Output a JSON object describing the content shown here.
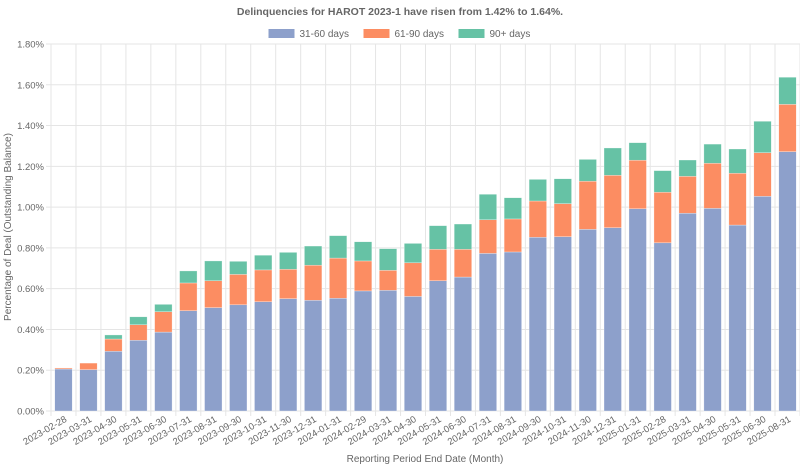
{
  "chart_data": {
    "type": "bar",
    "stacked": true,
    "title": "Delinquencies for HAROT 2023-1 have risen from 1.42% to 1.64%.",
    "xlabel": "Reporting Period End Date (Month)",
    "ylabel": "Percentage of Deal (Outstanding Balance)",
    "ylim": [
      0,
      1.8
    ],
    "y_ticks": [
      "0.00%",
      "0.20%",
      "0.40%",
      "0.60%",
      "0.80%",
      "1.00%",
      "1.20%",
      "1.40%",
      "1.60%",
      "1.80%"
    ],
    "y_tick_values": [
      0,
      0.2,
      0.4,
      0.6,
      0.8,
      1.0,
      1.2,
      1.4,
      1.6,
      1.8
    ],
    "grid": true,
    "legend_position": "top-center",
    "categories": [
      "2023-02-28",
      "2023-03-31",
      "2023-04-30",
      "2023-05-31",
      "2023-06-30",
      "2023-07-31",
      "2023-08-31",
      "2023-09-30",
      "2023-10-31",
      "2023-11-30",
      "2023-12-31",
      "2024-01-31",
      "2024-02-29",
      "2024-03-31",
      "2024-04-30",
      "2024-05-31",
      "2024-06-30",
      "2024-07-31",
      "2024-08-31",
      "2024-09-30",
      "2024-10-31",
      "2024-11-30",
      "2024-12-31",
      "2025-01-31",
      "2025-02-28",
      "2025-03-31",
      "2025-04-30",
      "2025-05-31",
      "2025-06-30",
      "2025-08-31"
    ],
    "series": [
      {
        "name": "31-60 days",
        "color": "#8da0cb",
        "values": [
          0.206,
          0.203,
          0.293,
          0.347,
          0.387,
          0.492,
          0.507,
          0.521,
          0.536,
          0.551,
          0.543,
          0.553,
          0.589,
          0.592,
          0.562,
          0.639,
          0.657,
          0.773,
          0.78,
          0.852,
          0.855,
          0.891,
          0.899,
          0.992,
          0.825,
          0.97,
          0.994,
          0.912,
          1.053,
          1.272
        ]
      },
      {
        "name": "61-90 days",
        "color": "#fc8d62",
        "values": [
          0.005,
          0.032,
          0.06,
          0.076,
          0.1,
          0.136,
          0.132,
          0.149,
          0.156,
          0.144,
          0.172,
          0.197,
          0.147,
          0.098,
          0.165,
          0.154,
          0.136,
          0.165,
          0.162,
          0.178,
          0.162,
          0.236,
          0.257,
          0.238,
          0.248,
          0.181,
          0.221,
          0.254,
          0.214,
          0.232
        ]
      },
      {
        "name": "90+ days",
        "color": "#66c2a5",
        "values": [
          0.0,
          0.0,
          0.02,
          0.039,
          0.036,
          0.059,
          0.097,
          0.064,
          0.072,
          0.083,
          0.094,
          0.11,
          0.094,
          0.106,
          0.095,
          0.116,
          0.124,
          0.125,
          0.104,
          0.106,
          0.122,
          0.107,
          0.134,
          0.086,
          0.106,
          0.08,
          0.094,
          0.119,
          0.154,
          0.133
        ]
      }
    ]
  }
}
